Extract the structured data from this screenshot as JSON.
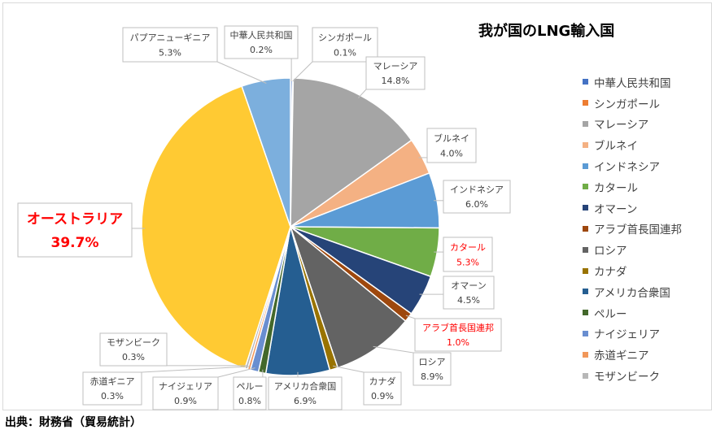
{
  "footer": {
    "source": "出典：財務省（貿易統計）"
  },
  "chart_data": {
    "type": "pie",
    "title": "我が国のLNG輸入国",
    "start": "top",
    "direction": "clockwise",
    "legend_position": "right",
    "slices": [
      {
        "label": "中華人民共和国",
        "value": 0.2,
        "text": "0.2%",
        "color": "#4472C4"
      },
      {
        "label": "シンガポール",
        "value": 0.1,
        "text": "0.1%",
        "color": "#ED7D31"
      },
      {
        "label": "マレーシア",
        "value": 14.8,
        "text": "14.8%",
        "color": "#A5A5A5"
      },
      {
        "label": "ブルネイ",
        "value": 4.0,
        "text": "4.0%",
        "color": "#F4B183"
      },
      {
        "label": "インドネシア",
        "value": 6.0,
        "text": "6.0%",
        "color": "#5B9BD5"
      },
      {
        "label": "カタール",
        "value": 5.3,
        "text": "5.3%",
        "color": "#70AD47",
        "highlight": "#FF0000"
      },
      {
        "label": "オマーン",
        "value": 4.5,
        "text": "4.5%",
        "color": "#264478"
      },
      {
        "label": "アラブ首長国連邦",
        "value": 1.0,
        "text": "1.0%",
        "color": "#9E480E",
        "highlight": "#FF0000"
      },
      {
        "label": "ロシア",
        "value": 8.9,
        "text": "8.9%",
        "color": "#636363"
      },
      {
        "label": "カナダ",
        "value": 0.9,
        "text": "0.9%",
        "color": "#997300"
      },
      {
        "label": "アメリカ合衆国",
        "value": 6.9,
        "text": "6.9%",
        "color": "#255E91"
      },
      {
        "label": "ペルー",
        "value": 0.8,
        "text": "0.8%",
        "color": "#43682B"
      },
      {
        "label": "ナイジェリア",
        "value": 0.9,
        "text": "0.9%",
        "color": "#698ED0"
      },
      {
        "label": "赤道ギニア",
        "value": 0.3,
        "text": "0.3%",
        "color": "#F1975A"
      },
      {
        "label": "モザンビーク",
        "value": 0.3,
        "text": "0.3%",
        "color": "#B7B7B7"
      },
      {
        "label": "オーストラリア",
        "value": 39.7,
        "text": "39.7%",
        "color": "#FFCA33",
        "highlight": "#FF0000",
        "emphasis": true
      },
      {
        "label": "パプアニューギニア",
        "value": 5.3,
        "text": "5.3%",
        "color": "#7CAFDD"
      }
    ],
    "legend_entries": [
      "中華人民共和国",
      "シンガポール",
      "マレーシア",
      "ブルネイ",
      "インドネシア",
      "カタール",
      "オマーン",
      "アラブ首長国連邦",
      "ロシア",
      "カナダ",
      "アメリカ合衆国",
      "ペルー",
      "ナイジェリア",
      "赤道ギニア",
      "モザンビーク"
    ]
  }
}
